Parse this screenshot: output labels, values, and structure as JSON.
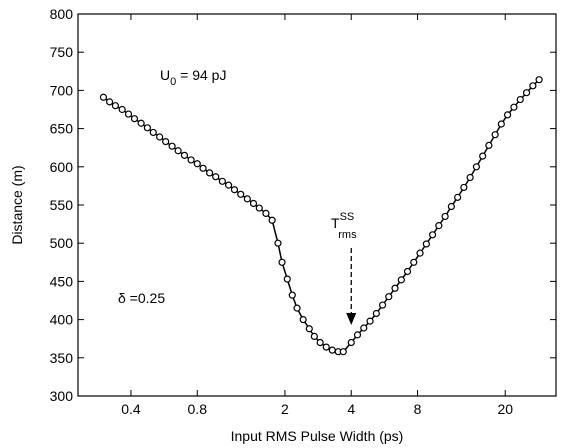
{
  "chart_data": {
    "type": "line",
    "xlabel": "Input RMS Pulse Width (ps)",
    "ylabel": "Distance (m)",
    "xscale": "log",
    "xlim": [
      0.23,
      34
    ],
    "ylim": [
      300,
      800
    ],
    "xticks": [
      0.4,
      0.8,
      2,
      4,
      8,
      20
    ],
    "yticks": [
      300,
      350,
      400,
      450,
      500,
      550,
      600,
      650,
      700,
      750,
      800
    ],
    "annotations": [
      {
        "text": "U",
        "sub": "0",
        "rest": " = 94 pJ"
      },
      {
        "text": "δ =0.25"
      },
      {
        "text": "T",
        "sup": "SS",
        "sub": "rms",
        "x": 4,
        "y": 393
      }
    ],
    "series": [
      {
        "color": "#000000",
        "x": [
          0.3,
          0.32,
          0.34,
          0.365,
          0.39,
          0.415,
          0.445,
          0.475,
          0.505,
          0.54,
          0.575,
          0.615,
          0.655,
          0.7,
          0.75,
          0.8,
          0.85,
          0.91,
          0.97,
          1.04,
          1.11,
          1.18,
          1.26,
          1.35,
          1.44,
          1.53,
          1.64,
          1.75,
          1.86,
          1.94,
          2.05,
          2.16,
          2.27,
          2.42,
          2.58,
          2.72,
          2.89,
          3.08,
          3.28,
          3.49,
          3.68,
          4,
          4.27,
          4.56,
          4.87,
          5.2,
          5.55,
          5.92,
          6.32,
          6.75,
          7.2,
          7.69,
          8.21,
          8.77,
          9.36,
          9.99,
          10.67,
          11.39,
          12.16,
          12.98,
          13.86,
          14.8,
          15.8,
          16.86,
          18.0,
          19.2,
          20.5,
          21.9,
          23.4,
          25.0,
          26.7,
          28.5
        ],
        "values": [
          691,
          685,
          680,
          675,
          669,
          663,
          657,
          651,
          645,
          639,
          633,
          627,
          621,
          615,
          609,
          604,
          598,
          592,
          587,
          581,
          576,
          570,
          564,
          558,
          552,
          546,
          539,
          530,
          500,
          475,
          453,
          432,
          415,
          400,
          388,
          378,
          370,
          364,
          360,
          358,
          358,
          370,
          380,
          389,
          398,
          408,
          419,
          430,
          441,
          452,
          463,
          475,
          487,
          499,
          511,
          523,
          535,
          548,
          560,
          573,
          586,
          600,
          614,
          628,
          642,
          656,
          668,
          678,
          688,
          697,
          706,
          714
        ]
      }
    ]
  }
}
